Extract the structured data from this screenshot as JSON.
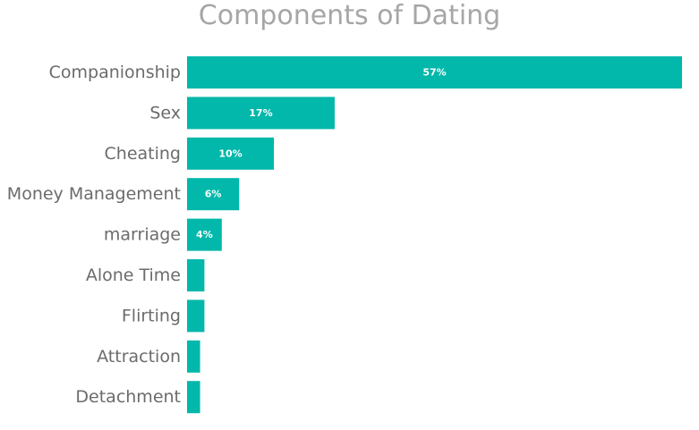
{
  "chart_data": {
    "type": "bar",
    "orientation": "horizontal",
    "title": "Components of Dating",
    "xlabel": "",
    "ylabel": "",
    "categories": [
      "Companionship",
      "Sex",
      "Cheating",
      "Money Management",
      "marriage",
      "Alone Time",
      "Flirting",
      "Attraction",
      "Detachment"
    ],
    "values": [
      57,
      17,
      10,
      6,
      4,
      2,
      2,
      1.5,
      1.5
    ],
    "data_labels": [
      "57%",
      "17%",
      "10%",
      "6%",
      "4%",
      "",
      "",
      "",
      ""
    ],
    "xlim": [
      0,
      57
    ],
    "grid": false,
    "legend": "none",
    "bar_color": "#01b8aa",
    "label_color": "#6b6b6b",
    "title_color": "#a6a6a6"
  }
}
